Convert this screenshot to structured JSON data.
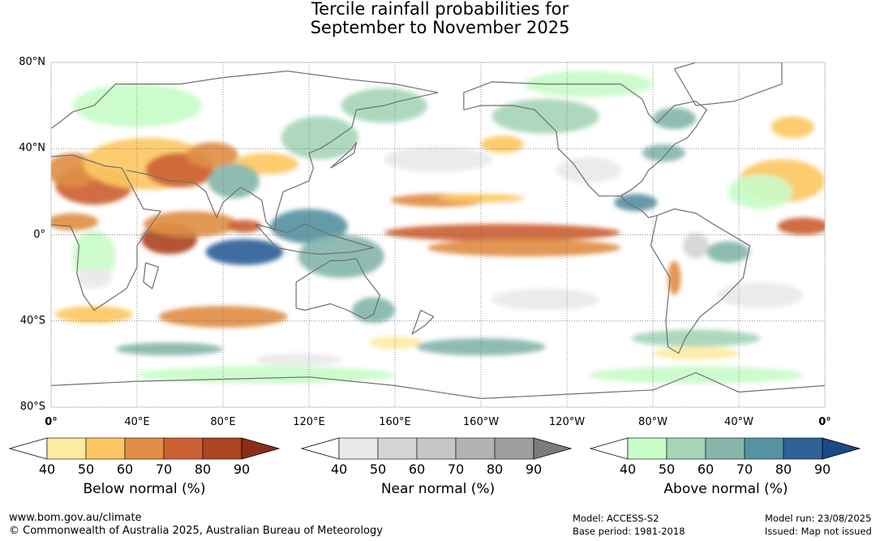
{
  "title_line1": "Tercile rainfall probabilities for",
  "title_line2": "September to November 2025",
  "lat_ticks": [
    {
      "lat": 80,
      "label": "80°N"
    },
    {
      "lat": 40,
      "label": "40°N"
    },
    {
      "lat": 0,
      "label": "0°"
    },
    {
      "lat": -40,
      "label": "40°S"
    },
    {
      "lat": -80,
      "label": "80°S"
    }
  ],
  "lon_ticks": [
    {
      "lon": 0,
      "label": "0°"
    },
    {
      "lon": 40,
      "label": "40°E"
    },
    {
      "lon": 80,
      "label": "80°E"
    },
    {
      "lon": 120,
      "label": "120°E"
    },
    {
      "lon": 160,
      "label": "160°E"
    },
    {
      "lon": 200,
      "label": "160°W"
    },
    {
      "lon": 240,
      "label": "120°W"
    },
    {
      "lon": 280,
      "label": "80°W"
    },
    {
      "lon": 320,
      "label": "40°W"
    },
    {
      "lon": 360,
      "label": "0°"
    }
  ],
  "colorbars": [
    {
      "title": "Below normal (%)",
      "ticks": [
        "40",
        "50",
        "60",
        "70",
        "80",
        "90"
      ],
      "colors": [
        "#ffffff",
        "#feeba2",
        "#fdc863",
        "#e08e45",
        "#cc6233",
        "#ad4523",
        "#8c2e17"
      ]
    },
    {
      "title": "Near normal (%)",
      "ticks": [
        "40",
        "50",
        "60",
        "70",
        "80",
        "90"
      ],
      "colors": [
        "#ffffff",
        "#e9e9e9",
        "#d5d5d5",
        "#c6c6c6",
        "#b1b4b2",
        "#9e9e9e",
        "#7c7c7c"
      ]
    },
    {
      "title": "Above normal (%)",
      "ticks": [
        "40",
        "50",
        "60",
        "70",
        "80",
        "90"
      ],
      "colors": [
        "#ffffff",
        "#c8fcc8",
        "#a6d5b8",
        "#86b6ab",
        "#5893a2",
        "#2f6298",
        "#184a86"
      ]
    }
  ],
  "footer": {
    "website": "www.bom.gov.au/climate",
    "copyright": "© Commonwealth of Australia 2025, Australian Bureau of Meteorology",
    "model": "Model: ACCESS-S2",
    "base_period": "Base period: 1981-2018",
    "model_run": "Model run: 23/08/2025",
    "issued": "Issued: Map not issued"
  },
  "regions": [
    {
      "cat": "below",
      "level": 4,
      "lon": 20,
      "lat": 23,
      "rx": 18,
      "ry": 9
    },
    {
      "cat": "below",
      "level": 3,
      "lon": 10,
      "lat": 30,
      "rx": 12,
      "ry": 8
    },
    {
      "cat": "below",
      "level": 2,
      "lon": 45,
      "lat": 33,
      "rx": 30,
      "ry": 12
    },
    {
      "cat": "below",
      "level": 4,
      "lon": 60,
      "lat": 30,
      "rx": 16,
      "ry": 8
    },
    {
      "cat": "below",
      "level": 3,
      "lon": 75,
      "lat": 37,
      "rx": 12,
      "ry": 6
    },
    {
      "cat": "below",
      "level": 2,
      "lon": 100,
      "lat": 33,
      "rx": 15,
      "ry": 5
    },
    {
      "cat": "below",
      "level": 5,
      "lon": 55,
      "lat": -2,
      "rx": 13,
      "ry": 7
    },
    {
      "cat": "below",
      "level": 3,
      "lon": 65,
      "lat": 5,
      "rx": 22,
      "ry": 6
    },
    {
      "cat": "below",
      "level": 4,
      "lon": 90,
      "lat": 4,
      "rx": 8,
      "ry": 3
    },
    {
      "cat": "below",
      "level": 3,
      "lon": 10,
      "lat": 6,
      "rx": 12,
      "ry": 4
    },
    {
      "cat": "below",
      "level": 2,
      "lon": 20,
      "lat": -37,
      "rx": 18,
      "ry": 4
    },
    {
      "cat": "below",
      "level": 3,
      "lon": 80,
      "lat": -38,
      "rx": 30,
      "ry": 5
    },
    {
      "cat": "below",
      "level": 3,
      "lon": 180,
      "lat": 16,
      "rx": 22,
      "ry": 3
    },
    {
      "cat": "below",
      "level": 4,
      "lon": 210,
      "lat": 1,
      "rx": 55,
      "ry": 4
    },
    {
      "cat": "below",
      "level": 3,
      "lon": 220,
      "lat": -6,
      "rx": 45,
      "ry": 4
    },
    {
      "cat": "below",
      "level": 2,
      "lon": 200,
      "lat": 17,
      "rx": 20,
      "ry": 2
    },
    {
      "cat": "below",
      "level": 3,
      "lon": 290,
      "lat": -20,
      "rx": 3,
      "ry": 8
    },
    {
      "cat": "below",
      "level": 4,
      "lon": 350,
      "lat": 4,
      "rx": 12,
      "ry": 4
    },
    {
      "cat": "below",
      "level": 2,
      "lon": 340,
      "lat": 25,
      "rx": 20,
      "ry": 10
    },
    {
      "cat": "below",
      "level": 2,
      "lon": 345,
      "lat": 50,
      "rx": 10,
      "ry": 5
    },
    {
      "cat": "below",
      "level": 2,
      "lon": 210,
      "lat": 42,
      "rx": 10,
      "ry": 4
    },
    {
      "cat": "below",
      "level": 1,
      "lon": 300,
      "lat": -55,
      "rx": 20,
      "ry": 3
    },
    {
      "cat": "below",
      "level": 1,
      "lon": 160,
      "lat": -50,
      "rx": 12,
      "ry": 3
    },
    {
      "cat": "above",
      "level": 5,
      "lon": 90,
      "lat": -8,
      "rx": 18,
      "ry": 6
    },
    {
      "cat": "above",
      "level": 4,
      "lon": 120,
      "lat": 4,
      "rx": 18,
      "ry": 8
    },
    {
      "cat": "above",
      "level": 3,
      "lon": 135,
      "lat": -10,
      "rx": 20,
      "ry": 10
    },
    {
      "cat": "above",
      "level": 3,
      "lon": 150,
      "lat": -35,
      "rx": 10,
      "ry": 6
    },
    {
      "cat": "above",
      "level": 3,
      "lon": 85,
      "lat": 25,
      "rx": 12,
      "ry": 8
    },
    {
      "cat": "above",
      "level": 2,
      "lon": 125,
      "lat": 45,
      "rx": 18,
      "ry": 10
    },
    {
      "cat": "above",
      "level": 2,
      "lon": 155,
      "lat": 60,
      "rx": 20,
      "ry": 8
    },
    {
      "cat": "above",
      "level": 2,
      "lon": 230,
      "lat": 55,
      "rx": 25,
      "ry": 8
    },
    {
      "cat": "above",
      "level": 4,
      "lon": 272,
      "lat": 15,
      "rx": 10,
      "ry": 4
    },
    {
      "cat": "above",
      "level": 3,
      "lon": 285,
      "lat": 38,
      "rx": 10,
      "ry": 4
    },
    {
      "cat": "above",
      "level": 3,
      "lon": 290,
      "lat": 54,
      "rx": 10,
      "ry": 5
    },
    {
      "cat": "above",
      "level": 3,
      "lon": 315,
      "lat": -8,
      "rx": 10,
      "ry": 5
    },
    {
      "cat": "above",
      "level": 3,
      "lon": 55,
      "lat": -53,
      "rx": 25,
      "ry": 3
    },
    {
      "cat": "above",
      "level": 3,
      "lon": 200,
      "lat": -52,
      "rx": 30,
      "ry": 4
    },
    {
      "cat": "above",
      "level": 2,
      "lon": 300,
      "lat": -48,
      "rx": 30,
      "ry": 4
    },
    {
      "cat": "above",
      "level": 1,
      "lon": 40,
      "lat": 60,
      "rx": 30,
      "ry": 10
    },
    {
      "cat": "above",
      "level": 1,
      "lon": 250,
      "lat": 70,
      "rx": 30,
      "ry": 6
    },
    {
      "cat": "above",
      "level": 1,
      "lon": 100,
      "lat": -65,
      "rx": 60,
      "ry": 4
    },
    {
      "cat": "above",
      "level": 1,
      "lon": 300,
      "lat": -65,
      "rx": 50,
      "ry": 4
    },
    {
      "cat": "above",
      "level": 1,
      "lon": 20,
      "lat": -10,
      "rx": 10,
      "ry": 12
    },
    {
      "cat": "above",
      "level": 1,
      "lon": 330,
      "lat": 20,
      "rx": 15,
      "ry": 8
    },
    {
      "cat": "near",
      "level": 1,
      "lon": 180,
      "lat": 35,
      "rx": 25,
      "ry": 6
    },
    {
      "cat": "near",
      "level": 1,
      "lon": 250,
      "lat": 30,
      "rx": 15,
      "ry": 6
    },
    {
      "cat": "near",
      "level": 1,
      "lon": 330,
      "lat": -28,
      "rx": 20,
      "ry": 6
    },
    {
      "cat": "near",
      "level": 2,
      "lon": 300,
      "lat": -5,
      "rx": 6,
      "ry": 6
    },
    {
      "cat": "near",
      "level": 1,
      "lon": 230,
      "lat": -30,
      "rx": 25,
      "ry": 5
    },
    {
      "cat": "near",
      "level": 1,
      "lon": 20,
      "lat": -20,
      "rx": 8,
      "ry": 5
    },
    {
      "cat": "near",
      "level": 1,
      "lon": 115,
      "lat": -58,
      "rx": 20,
      "ry": 3
    }
  ]
}
